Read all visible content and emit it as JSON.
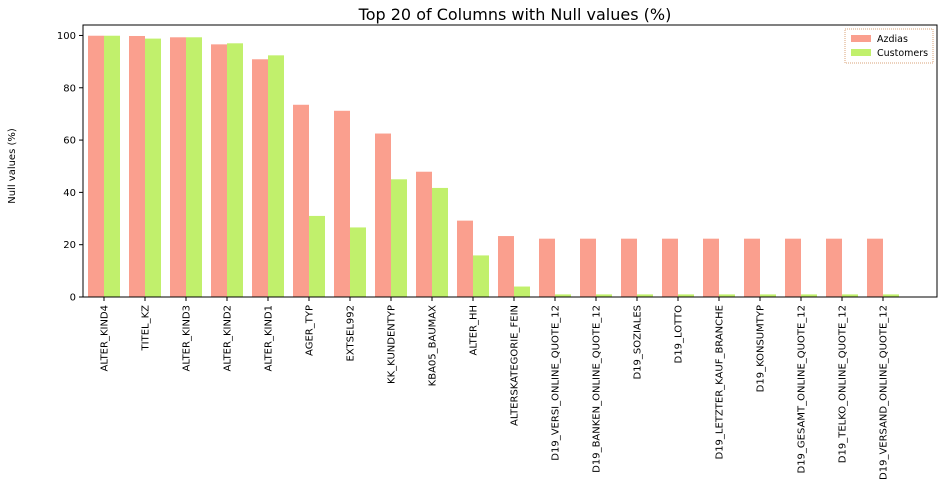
{
  "chart_data": {
    "type": "bar",
    "title": "Top 20 of Columns with Null values (%)",
    "xlabel": "",
    "ylabel": "Null values (%)",
    "ylim": [
      0,
      104
    ],
    "yticks": [
      0,
      20,
      40,
      60,
      80,
      100
    ],
    "grid": false,
    "legend_position": "top-right",
    "categories": [
      "ALTER_KIND4",
      "TITEL_KZ",
      "ALTER_KIND3",
      "ALTER_KIND2",
      "ALTER_KIND1",
      "AGER_TYP",
      "EXTSEL992",
      "KK_KUNDENTYP",
      "KBA05_BAUMAX",
      "ALTER_HH",
      "ALTERSKATEGORIE_FEIN",
      "D19_VERSI_ONLINE_QUOTE_12",
      "D19_BANKEN_ONLINE_QUOTE_12",
      "D19_SOZIALES",
      "D19_LOTTO",
      "D19_LETZTER_KAUF_BRANCHE",
      "D19_KONSUMTYP",
      "D19_GESAMT_ONLINE_QUOTE_12",
      "D19_TELKO_ONLINE_QUOTE_12",
      "D19_VERSAND_ONLINE_QUOTE_12"
    ],
    "series": [
      {
        "name": "Azdias",
        "color": "#fa9f8e",
        "values": [
          99.9,
          99.8,
          99.3,
          96.6,
          90.9,
          73.5,
          71.2,
          62.5,
          47.9,
          29.2,
          23.3,
          22.3,
          22.3,
          22.3,
          22.3,
          22.3,
          22.3,
          22.3,
          22.3,
          22.3
        ]
      },
      {
        "name": "Customers",
        "color": "#c1f06c",
        "values": [
          99.9,
          98.8,
          99.3,
          97.0,
          92.4,
          31.0,
          26.6,
          45.0,
          41.7,
          15.9,
          4.0,
          1.0,
          1.0,
          1.0,
          1.0,
          1.0,
          1.0,
          1.0,
          1.0,
          1.0
        ]
      }
    ]
  }
}
